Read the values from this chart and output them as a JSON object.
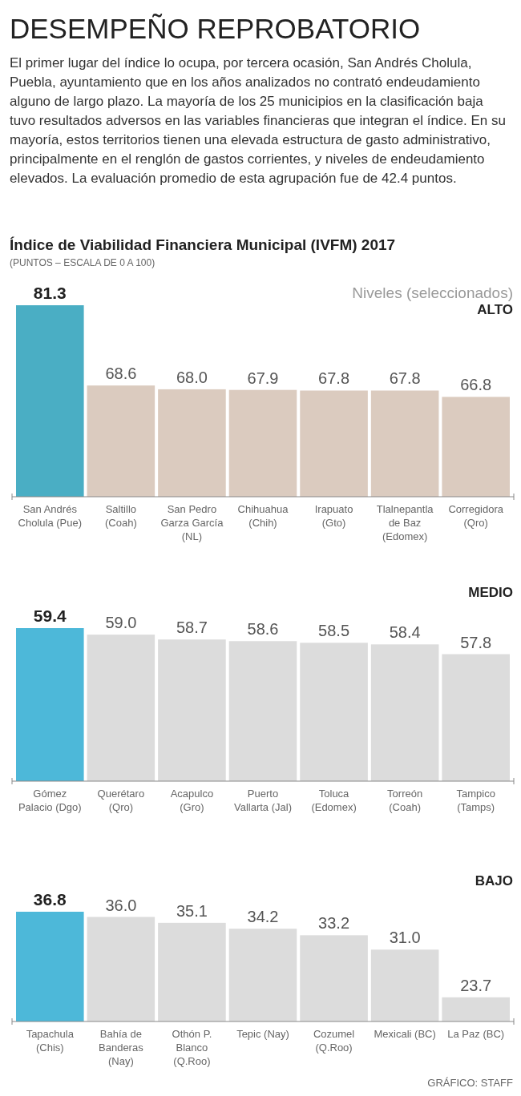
{
  "chart_data": [
    {
      "type": "bar",
      "title": "ALTO",
      "categories": [
        "San Andrés Cholula (Pue)",
        "Saltillo (Coah)",
        "San Pedro Garza García (NL)",
        "Chihuahua (Chih)",
        "Irapuato (Gto)",
        "Tlalnepantla de Baz (Edomex)",
        "Corregidora (Qro)"
      ],
      "values": [
        81.3,
        68.6,
        68.0,
        67.9,
        67.8,
        67.8,
        66.8
      ],
      "colors": [
        "#4aaec4",
        "#dbcbbf",
        "#dbcbbf",
        "#dbcbbf",
        "#dbcbbf",
        "#dbcbbf",
        "#dbcbbf"
      ],
      "ylim": [
        51,
        81.3
      ],
      "tick_labels": "x",
      "value_labels": [
        "81.3",
        "68.6",
        "68.0",
        "67.9",
        "67.8",
        "67.8",
        "66.8"
      ],
      "annotations": [
        "DESEMPEÑO REPROBATORIO",
        "El primer lugar del índice lo ocupa, por tercera ocasión, San Andrés Cholula, Puebla, ayuntamiento que en los años analizados no contrató endeudamiento alguno de largo plazo. La mayoría de los 25 municipios en la clasificación baja tuvo resultados adversos en las variables financieras que integran el índice. En su mayoría, estos territorios tienen una elevada estructura de gasto administrativo, principalmente en el renglón de gastos corrientes, y niveles de endeudamiento elevados. La evaluación promedio de esta agrupación fue de 42.4 puntos.",
        "Índice de Viabilidad Financiera Municipal (IVFM) 2017",
        "(PUNTOS – ESCALA DE 0 A 100)",
        "Niveles (seleccionados)"
      ]
    },
    {
      "type": "bar",
      "title": "MEDIO",
      "categories": [
        "Gómez Palacio (Dgo)",
        "Querétaro (Qro)",
        "Acapulco (Gro)",
        "Puerto Vallarta (Jal)",
        "Toluca (Edomex)",
        "Torreón (Coah)",
        "Tampico (Tamps)"
      ],
      "values": [
        59.4,
        59.0,
        58.7,
        58.6,
        58.5,
        58.4,
        57.8
      ],
      "colors": [
        "#4db8d9",
        "#dcdcdc",
        "#dcdcdc",
        "#dcdcdc",
        "#dcdcdc",
        "#dcdcdc",
        "#dcdcdc"
      ],
      "ylim": [
        50,
        59.4
      ],
      "tick_labels": "x",
      "value_labels": [
        "59.4",
        "59.0",
        "58.7",
        "58.6",
        "58.5",
        "58.4",
        "57.8"
      ]
    },
    {
      "type": "bar",
      "title": "BAJO",
      "categories": [
        "Tapachula (Chis)",
        "Bahía de Banderas (Nay)",
        "Othón P. Blanco (Q.Roo)",
        "Tepic (Nay)",
        "Cozumel (Q.Roo)",
        "Mexicali (BC)",
        "La Paz (BC)"
      ],
      "values": [
        36.8,
        36.0,
        35.1,
        34.2,
        33.2,
        31.0,
        23.7
      ],
      "colors": [
        "#4db8d9",
        "#dcdcdc",
        "#dcdcdc",
        "#dcdcdc",
        "#dcdcdc",
        "#dcdcdc",
        "#dcdcdc"
      ],
      "ylim": [
        20,
        36.8
      ],
      "tick_labels": "x",
      "value_labels": [
        "36.8",
        "36.0",
        "35.1",
        "34.2",
        "33.2",
        "31.0",
        "23.7"
      ],
      "annotations": [
        "GRÁFICO: STAFF"
      ]
    }
  ]
}
